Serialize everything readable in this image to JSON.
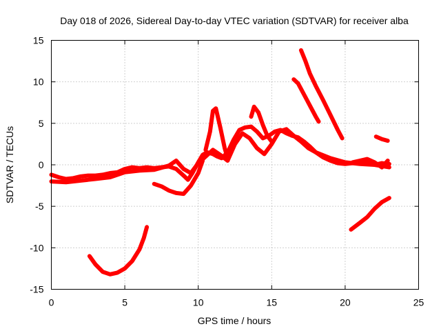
{
  "chart_data": {
    "type": "line",
    "title": "Day 018 of 2026, Sidereal Day-to-day VTEC variation (SDTVAR) for receiver alba",
    "xlabel": "GPS time / hours",
    "ylabel": "SDTVAR / TECUs",
    "xlim": [
      0,
      25
    ],
    "ylim": [
      -15,
      15
    ],
    "xticks": [
      0,
      5,
      10,
      15,
      20,
      25
    ],
    "yticks": [
      -15,
      -10,
      -5,
      0,
      5,
      10,
      15
    ],
    "grid": true,
    "color": "#ff0000",
    "series": [
      {
        "name": "main-band-a",
        "x": [
          0.0,
          0.5,
          1.0,
          1.5,
          2.0,
          2.5,
          3.0,
          3.5,
          4.0,
          4.5,
          5.0,
          5.5,
          6.0,
          6.5,
          7.0,
          7.5,
          8.0,
          8.5,
          9.0,
          9.3,
          9.6,
          10.0,
          10.3,
          10.6,
          11.0,
          11.3,
          11.6,
          12.0,
          12.4,
          12.8,
          13.2,
          13.6,
          14.0,
          14.4,
          14.8,
          15.2,
          15.6,
          16.0,
          16.4,
          16.8,
          17.2,
          17.6,
          18.0,
          18.5,
          19.0,
          19.5,
          20.0,
          20.5,
          21.0,
          21.5,
          22.0,
          22.5,
          23.0
        ],
        "y": [
          -1.2,
          -1.5,
          -1.7,
          -1.6,
          -1.4,
          -1.3,
          -1.3,
          -1.2,
          -1.0,
          -0.9,
          -0.5,
          -0.3,
          -0.4,
          -0.3,
          -0.4,
          -0.3,
          -0.2,
          -0.5,
          -1.3,
          -1.8,
          -1.0,
          0.3,
          1.2,
          1.5,
          1.3,
          1.0,
          0.8,
          1.5,
          3.0,
          4.2,
          4.5,
          4.6,
          4.0,
          3.2,
          3.5,
          4.0,
          4.2,
          3.8,
          3.5,
          3.3,
          2.8,
          2.2,
          1.5,
          0.9,
          0.5,
          0.2,
          0.1,
          0.2,
          0.3,
          0.2,
          0.0,
          0.2,
          0.1
        ]
      },
      {
        "name": "main-band-b",
        "x": [
          0.0,
          1.0,
          2.0,
          3.0,
          4.0,
          5.0,
          6.0,
          7.0,
          8.0,
          8.5,
          9.0,
          9.5,
          10.0,
          10.5,
          11.0,
          11.5,
          12.0,
          12.5,
          13.0,
          13.5,
          14.0,
          14.5,
          15.0,
          15.5,
          16.0,
          16.5,
          17.0,
          17.5,
          18.0,
          19.0,
          20.0,
          21.0,
          22.0,
          23.0
        ],
        "y": [
          -2.0,
          -2.1,
          -1.9,
          -1.7,
          -1.5,
          -0.9,
          -0.7,
          -0.6,
          -0.1,
          0.5,
          -0.5,
          -1.0,
          0.2,
          1.0,
          1.8,
          1.2,
          0.5,
          2.5,
          3.8,
          3.2,
          2.0,
          1.3,
          2.5,
          4.0,
          4.3,
          3.5,
          2.8,
          2.0,
          1.5,
          0.8,
          0.3,
          0.1,
          0.0,
          -0.3
        ]
      },
      {
        "name": "arc-bottom-left",
        "x": [
          2.6,
          3.0,
          3.5,
          4.0,
          4.5,
          5.0,
          5.5,
          6.0,
          6.3,
          6.5
        ],
        "y": [
          -11.0,
          -12.0,
          -12.9,
          -13.2,
          -13.0,
          -12.5,
          -11.6,
          -10.2,
          -8.8,
          -7.5
        ]
      },
      {
        "name": "dip-7-9h",
        "x": [
          7.0,
          7.5,
          8.0,
          8.5,
          9.0,
          9.5,
          10.0,
          10.3
        ],
        "y": [
          -2.3,
          -2.6,
          -3.1,
          -3.4,
          -3.5,
          -2.5,
          -1.0,
          0.5
        ]
      },
      {
        "name": "spike-11h",
        "x": [
          10.5,
          10.8,
          11.0,
          11.2,
          11.5,
          11.8,
          12.0
        ],
        "y": [
          1.8,
          4.0,
          6.5,
          6.8,
          4.5,
          2.0,
          0.8
        ]
      },
      {
        "name": "spike-14h",
        "x": [
          13.6,
          13.8,
          14.1,
          14.4,
          14.7,
          15.0
        ],
        "y": [
          5.8,
          7.0,
          6.3,
          4.8,
          3.5,
          2.8
        ]
      },
      {
        "name": "streak-17h",
        "x": [
          17.0,
          17.3,
          17.6,
          18.0,
          18.5,
          19.0,
          19.5,
          19.8
        ],
        "y": [
          13.8,
          12.5,
          11.0,
          9.5,
          7.8,
          6.0,
          4.2,
          3.2
        ]
      },
      {
        "name": "streak-16h",
        "x": [
          16.5,
          16.8,
          17.1,
          17.4,
          17.7,
          18.0,
          18.2
        ],
        "y": [
          10.3,
          9.8,
          8.8,
          7.8,
          6.8,
          5.8,
          5.2
        ]
      },
      {
        "name": "short-22h",
        "x": [
          22.1,
          22.5,
          22.9
        ],
        "y": [
          3.4,
          3.1,
          2.9
        ]
      },
      {
        "name": "rise-20h",
        "x": [
          20.4,
          21.0,
          21.5,
          22.0,
          22.5,
          23.0
        ],
        "y": [
          -7.8,
          -7.0,
          -6.3,
          -5.3,
          -4.5,
          -4.0
        ]
      },
      {
        "name": "tail-21h",
        "x": [
          20.5,
          21.0,
          21.5,
          22.0,
          22.5,
          22.9
        ],
        "y": [
          0.3,
          0.5,
          0.7,
          0.3,
          -0.3,
          0.5
        ]
      }
    ]
  }
}
